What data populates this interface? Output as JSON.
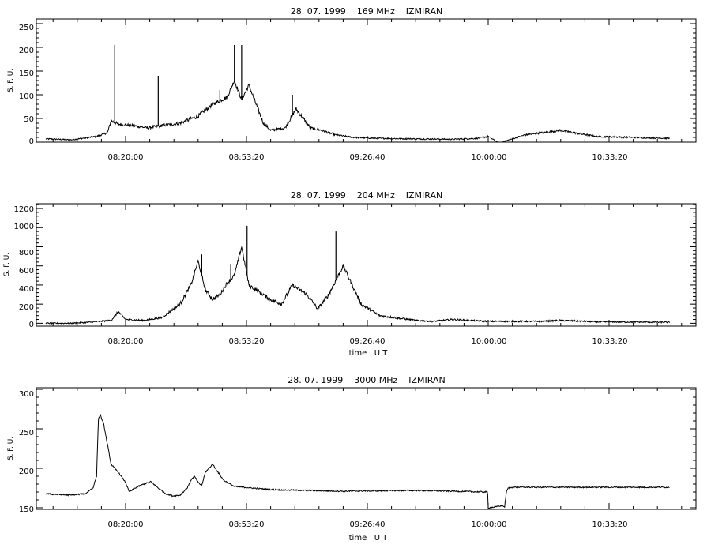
{
  "chart_data": [
    {
      "type": "line",
      "title": "28. 07. 1999    169 MHz    IZMIRAN",
      "ylabel": "S. F. U.",
      "xlabel": "",
      "ylim": [
        0,
        260
      ],
      "yticks": [
        "0",
        "50",
        "100",
        "150",
        "200",
        "250"
      ],
      "xticks": [
        "08:20:00",
        "08:53:20",
        "09:26:40",
        "10:00:00",
        "10:33:20"
      ],
      "series": [
        {
          "x": [
            "07:58:00",
            "08:05:00",
            "08:12:00",
            "08:15:00",
            "08:16:00",
            "08:18:00",
            "08:22:00",
            "08:26:00",
            "08:30:00",
            "08:35:00",
            "08:40:00",
            "08:44:00",
            "08:48:00",
            "08:50:00",
            "08:52:00",
            "08:54:00",
            "08:56:00",
            "08:58:00",
            "09:00:00",
            "09:04:00",
            "09:07:00",
            "09:09:00",
            "09:11:00",
            "09:14:00",
            "09:18:00",
            "09:23:00",
            "09:30:00",
            "09:40:00",
            "09:50:00",
            "09:57:00",
            "10:00:00",
            "10:03:00",
            "10:10:00",
            "10:15:00",
            "10:20:00",
            "10:25:00",
            "10:30:00",
            "10:40:00",
            "10:50:00"
          ],
          "y": [
            7,
            5,
            12,
            20,
            45,
            38,
            35,
            30,
            35,
            40,
            55,
            80,
            95,
            130,
            90,
            120,
            80,
            40,
            25,
            30,
            70,
            50,
            30,
            25,
            15,
            10,
            8,
            7,
            6,
            8,
            12,
            -2,
            15,
            20,
            25,
            18,
            12,
            10,
            8
          ],
          "peaks": [
            {
              "x": "08:17:00",
              "y": 205
            },
            {
              "x": "08:29:00",
              "y": 140
            },
            {
              "x": "08:46:00",
              "y": 110
            },
            {
              "x": "08:50:00",
              "y": 205
            },
            {
              "x": "08:52:00",
              "y": 205
            },
            {
              "x": "09:06:00",
              "y": 100
            }
          ]
        }
      ]
    },
    {
      "type": "line",
      "title": "28. 07. 1999    204 MHz    IZMIRAN",
      "ylabel": "S. F. U.",
      "xlabel": "time   U T",
      "ylim": [
        -30,
        1250
      ],
      "yticks": [
        "0",
        "200",
        "400",
        "600",
        "800",
        "1000",
        "1200"
      ],
      "xticks": [
        "08:20:00",
        "08:53:20",
        "09:26:40",
        "10:00:00",
        "10:33:20"
      ],
      "series": [
        {
          "x": [
            "07:58:00",
            "08:05:00",
            "08:10:00",
            "08:16:00",
            "08:18:00",
            "08:20:00",
            "08:25:00",
            "08:30:00",
            "08:35:00",
            "08:38:00",
            "08:40:00",
            "08:42:00",
            "08:44:00",
            "08:46:00",
            "08:48:00",
            "08:50:00",
            "08:52:00",
            "08:54:00",
            "08:56:00",
            "08:58:00",
            "09:00:00",
            "09:03:00",
            "09:06:00",
            "09:08:00",
            "09:10:00",
            "09:13:00",
            "09:16:00",
            "09:20:00",
            "09:25:00",
            "09:30:00",
            "09:40:00",
            "09:45:00",
            "09:50:00",
            "10:00:00",
            "10:15:00",
            "10:20:00",
            "10:30:00",
            "10:50:00"
          ],
          "y": [
            0,
            0,
            10,
            30,
            120,
            40,
            30,
            60,
            200,
            400,
            650,
            350,
            250,
            300,
            420,
            500,
            800,
            400,
            350,
            300,
            250,
            200,
            400,
            350,
            300,
            150,
            300,
            600,
            200,
            80,
            30,
            20,
            40,
            20,
            20,
            30,
            15,
            10
          ],
          "peaks": [
            {
              "x": "08:53:30",
              "y": 1020
            },
            {
              "x": "09:18:00",
              "y": 960
            },
            {
              "x": "08:41:00",
              "y": 720
            },
            {
              "x": "08:49:00",
              "y": 620
            }
          ]
        }
      ]
    },
    {
      "type": "line",
      "title": "28. 07. 1999    3000 MHz    IZMIRAN",
      "ylabel": "S. F. U.",
      "xlabel": "time   U T",
      "ylim": [
        148,
        302
      ],
      "yticks": [
        "150",
        "200",
        "250",
        "300"
      ],
      "xticks": [
        "08:20:00",
        "08:53:20",
        "09:26:40",
        "10:00:00",
        "10:33:20"
      ],
      "series": [
        {
          "x": [
            "07:58:00",
            "08:00:00",
            "08:05:00",
            "08:09:00",
            "08:10:00",
            "08:11:00",
            "08:12:00",
            "08:12:30",
            "08:13:00",
            "08:14:00",
            "08:15:00",
            "08:16:00",
            "08:18:00",
            "08:20:00",
            "08:21:00",
            "08:23:00",
            "08:25:00",
            "08:27:00",
            "08:29:00",
            "08:31:00",
            "08:33:00",
            "08:35:00",
            "08:37:00",
            "08:38:00",
            "08:39:00",
            "08:40:00",
            "08:41:00",
            "08:42:00",
            "08:44:00",
            "08:47:00",
            "08:50:00",
            "09:00:00",
            "09:20:00",
            "09:40:00",
            "09:59:50",
            "10:00:00",
            "10:00:10",
            "10:02:00",
            "10:04:00",
            "10:04:30",
            "10:05:00",
            "10:05:30",
            "10:07:00",
            "10:20:00",
            "10:40:00",
            "10:50:00"
          ],
          "y": [
            168,
            167,
            166,
            168,
            172,
            175,
            190,
            262,
            268,
            255,
            230,
            205,
            195,
            182,
            170,
            176,
            180,
            183,
            175,
            168,
            165,
            166,
            175,
            185,
            190,
            182,
            178,
            195,
            205,
            185,
            177,
            173,
            171,
            172,
            170,
            150,
            150,
            151,
            153,
            150,
            170,
            175,
            176,
            176,
            176,
            176
          ]
        }
      ]
    }
  ]
}
